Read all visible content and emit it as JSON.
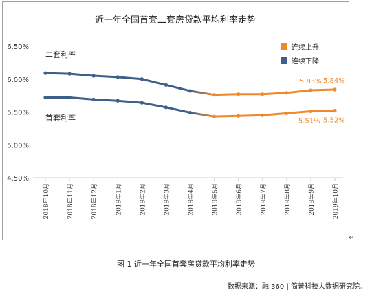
{
  "chart_data": {
    "type": "line",
    "title": "近一年全国首套二套房贷款平均利率走势",
    "categories": [
      "2018年10月",
      "2018年11月",
      "2018年12月",
      "2019年1月",
      "2019年2月",
      "2019年3月",
      "2019年4月",
      "2019年5月",
      "2019年6月",
      "2019年7月",
      "2019年8月",
      "2019年9月",
      "2019年10月"
    ],
    "series": [
      {
        "name": "二套利率",
        "values": [
          6.09,
          6.08,
          6.05,
          6.03,
          6.0,
          5.91,
          5.82,
          5.76,
          5.77,
          5.77,
          5.79,
          5.83,
          5.84
        ]
      },
      {
        "name": "首套利率",
        "values": [
          5.72,
          5.72,
          5.69,
          5.67,
          5.64,
          5.57,
          5.49,
          5.43,
          5.44,
          5.45,
          5.48,
          5.51,
          5.52
        ]
      }
    ],
    "yticks": [
      "4.50%",
      "5.00%",
      "5.50%",
      "6.00%",
      "6.50%"
    ],
    "ylim": [
      4.5,
      6.5
    ],
    "legend": [
      {
        "label": "连续上升",
        "color": "#F0892A"
      },
      {
        "label": "连续下降",
        "color": "#3E5F8A"
      }
    ],
    "annotations": [
      "5.83%",
      "5.84%",
      "5.51%",
      "5.52%"
    ],
    "colors": {
      "down": "#3E5F8A",
      "up": "#F0892A"
    },
    "grid": false,
    "legend_position": "top-right"
  },
  "caption": "图 1  近一年全国首套房贷款平均利率走势",
  "source": "数据来源：融 360 | 简普科技大数据研究院。",
  "return_mark": "↵"
}
